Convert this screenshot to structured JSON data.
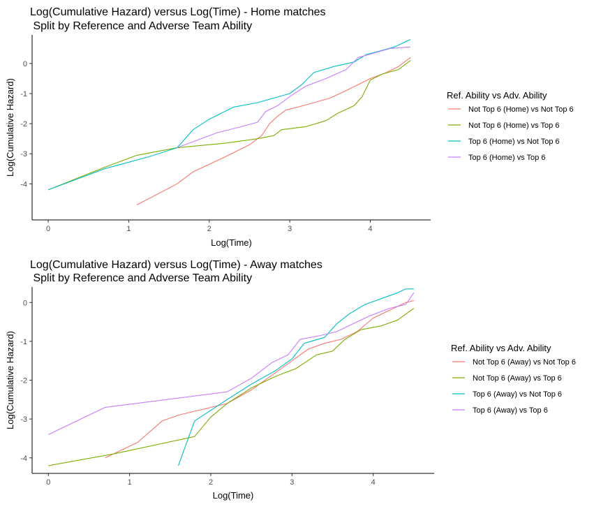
{
  "chart_data": [
    {
      "type": "line",
      "title_line1": "Log(Cumulative Hazard) versus Log(Time) - Home matches",
      "title_line2": " Split by Reference and Adverse Team Ability",
      "xlabel": "Log(Time)",
      "ylabel": "Log(Cumulative Hazard)",
      "xlim": [
        -0.2,
        4.75
      ],
      "ylim": [
        -5.2,
        0.95
      ],
      "xticks": [
        0,
        1,
        2,
        3,
        4
      ],
      "yticks": [
        -4,
        -3,
        -2,
        -1,
        0
      ],
      "grid": false,
      "legend_title": "Ref. Ability vs Adv. Ability",
      "legend_position": "right",
      "series": [
        {
          "name": "Not Top 6 (Home) vs Not Top 6",
          "color": "#F8766D",
          "points": [
            [
              1.1,
              -4.7
            ],
            [
              1.6,
              -4.0
            ],
            [
              1.8,
              -3.6
            ],
            [
              2.2,
              -3.1
            ],
            [
              2.5,
              -2.7
            ],
            [
              2.65,
              -2.4
            ],
            [
              2.75,
              -2.0
            ],
            [
              2.85,
              -1.75
            ],
            [
              2.95,
              -1.55
            ],
            [
              3.1,
              -1.45
            ],
            [
              3.3,
              -1.3
            ],
            [
              3.5,
              -1.15
            ],
            [
              3.7,
              -0.9
            ],
            [
              3.85,
              -0.7
            ],
            [
              4.0,
              -0.5
            ],
            [
              4.2,
              -0.3
            ],
            [
              4.35,
              -0.1
            ],
            [
              4.5,
              0.2
            ]
          ]
        },
        {
          "name": "Not Top 6 (Home) vs Top 6",
          "color": "#7CAE00",
          "points": [
            [
              0,
              -4.2
            ],
            [
              0.7,
              -3.45
            ],
            [
              1.1,
              -3.05
            ],
            [
              1.6,
              -2.8
            ],
            [
              2.2,
              -2.65
            ],
            [
              2.6,
              -2.5
            ],
            [
              2.8,
              -2.4
            ],
            [
              2.9,
              -2.2
            ],
            [
              3.2,
              -2.1
            ],
            [
              3.45,
              -1.9
            ],
            [
              3.6,
              -1.65
            ],
            [
              3.8,
              -1.4
            ],
            [
              3.9,
              -1.1
            ],
            [
              4.0,
              -0.55
            ],
            [
              4.15,
              -0.35
            ],
            [
              4.35,
              -0.2
            ],
            [
              4.5,
              0.1
            ]
          ]
        },
        {
          "name": "Top 6 (Home) vs Not Top 6",
          "color": "#00BFC4",
          "points": [
            [
              0,
              -4.2
            ],
            [
              0.7,
              -3.5
            ],
            [
              1.25,
              -3.1
            ],
            [
              1.6,
              -2.8
            ],
            [
              1.8,
              -2.2
            ],
            [
              2.0,
              -1.85
            ],
            [
              2.3,
              -1.45
            ],
            [
              2.6,
              -1.3
            ],
            [
              2.8,
              -1.15
            ],
            [
              3.0,
              -1.0
            ],
            [
              3.15,
              -0.7
            ],
            [
              3.3,
              -0.3
            ],
            [
              3.55,
              -0.1
            ],
            [
              3.8,
              0.05
            ],
            [
              3.95,
              0.3
            ],
            [
              4.1,
              0.4
            ],
            [
              4.3,
              0.55
            ],
            [
              4.5,
              0.8
            ]
          ]
        },
        {
          "name": "Top 6 (Home) vs Top 6",
          "color": "#C77CFF",
          "points": [
            [
              1.6,
              -2.8
            ],
            [
              2.1,
              -2.3
            ],
            [
              2.4,
              -2.1
            ],
            [
              2.6,
              -1.95
            ],
            [
              2.7,
              -1.6
            ],
            [
              2.85,
              -1.4
            ],
            [
              3.0,
              -1.1
            ],
            [
              3.2,
              -0.75
            ],
            [
              3.45,
              -0.5
            ],
            [
              3.7,
              -0.2
            ],
            [
              3.85,
              0.2
            ],
            [
              4.05,
              0.35
            ],
            [
              4.25,
              0.5
            ],
            [
              4.5,
              0.55
            ]
          ]
        }
      ]
    },
    {
      "type": "line",
      "title_line1": "Log(Cumulative Hazard) versus Log(Time) - Away matches",
      "title_line2": " Split by Reference and Adverse Team Ability",
      "xlabel": "Log(Time)",
      "ylabel": "Log(Cumulative Hazard)",
      "xlim": [
        -0.2,
        4.75
      ],
      "ylim": [
        -4.4,
        0.4
      ],
      "xticks": [
        0,
        1,
        2,
        3,
        4
      ],
      "yticks": [
        -4,
        -3,
        -2,
        -1,
        0
      ],
      "grid": false,
      "legend_title": "Ref. Ability vs Adv. Ability",
      "legend_position": "right",
      "series": [
        {
          "name": "Not Top 6 (Away) vs Not Top 6",
          "color": "#F8766D",
          "points": [
            [
              0.7,
              -4.0
            ],
            [
              1.1,
              -3.6
            ],
            [
              1.4,
              -3.05
            ],
            [
              1.6,
              -2.9
            ],
            [
              2.2,
              -2.6
            ],
            [
              2.5,
              -2.25
            ],
            [
              2.8,
              -1.8
            ],
            [
              3.0,
              -1.5
            ],
            [
              3.2,
              -1.2
            ],
            [
              3.4,
              -1.05
            ],
            [
              3.6,
              -0.95
            ],
            [
              3.8,
              -0.75
            ],
            [
              4.0,
              -0.4
            ],
            [
              4.2,
              -0.2
            ],
            [
              4.4,
              0.0
            ],
            [
              4.5,
              0.05
            ]
          ]
        },
        {
          "name": "Not Top 6 (Away) vs Top 6",
          "color": "#7CAE00",
          "points": [
            [
              0,
              -4.2
            ],
            [
              0.8,
              -3.9
            ],
            [
              1.8,
              -3.45
            ],
            [
              2.0,
              -2.95
            ],
            [
              2.2,
              -2.6
            ],
            [
              2.5,
              -2.2
            ],
            [
              2.8,
              -1.9
            ],
            [
              3.05,
              -1.7
            ],
            [
              3.3,
              -1.35
            ],
            [
              3.5,
              -1.25
            ],
            [
              3.65,
              -0.95
            ],
            [
              3.85,
              -0.7
            ],
            [
              4.1,
              -0.6
            ],
            [
              4.3,
              -0.45
            ],
            [
              4.5,
              -0.15
            ]
          ]
        },
        {
          "name": "Top 6 (Away) vs Not Top 6",
          "color": "#00BFC4",
          "points": [
            [
              1.6,
              -4.2
            ],
            [
              1.8,
              -3.05
            ],
            [
              2.2,
              -2.5
            ],
            [
              2.5,
              -2.1
            ],
            [
              2.8,
              -1.75
            ],
            [
              3.0,
              -1.45
            ],
            [
              3.15,
              -1.05
            ],
            [
              3.4,
              -0.9
            ],
            [
              3.55,
              -0.55
            ],
            [
              3.7,
              -0.3
            ],
            [
              3.9,
              -0.05
            ],
            [
              4.1,
              0.1
            ],
            [
              4.3,
              0.25
            ],
            [
              4.4,
              0.35
            ],
            [
              4.5,
              0.35
            ]
          ]
        },
        {
          "name": "Top 6 (Away) vs Top 6",
          "color": "#C77CFF",
          "points": [
            [
              0,
              -3.4
            ],
            [
              0.7,
              -2.7
            ],
            [
              2.2,
              -2.3
            ],
            [
              2.5,
              -1.95
            ],
            [
              2.75,
              -1.55
            ],
            [
              2.95,
              -1.35
            ],
            [
              3.1,
              -0.95
            ],
            [
              3.35,
              -0.85
            ],
            [
              3.55,
              -0.75
            ],
            [
              3.75,
              -0.55
            ],
            [
              3.95,
              -0.35
            ],
            [
              4.2,
              -0.15
            ],
            [
              4.4,
              -0.05
            ],
            [
              4.5,
              0.25
            ]
          ]
        }
      ]
    }
  ]
}
